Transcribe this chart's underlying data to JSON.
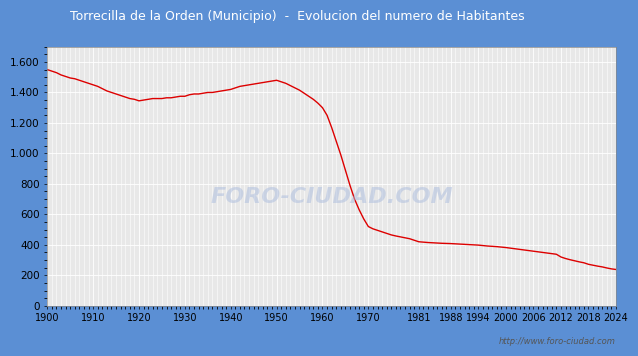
{
  "title": "Torrecilla de la Orden (Municipio)  -  Evolucion del numero de Habitantes",
  "title_bg_color": "#5b8fd4",
  "title_text_color": "white",
  "line_color": "#dd0000",
  "plot_bg_color": "#e8e8e8",
  "grid_color": "#ffffff",
  "ylim": [
    0,
    1700
  ],
  "yticks": [
    0,
    200,
    400,
    600,
    800,
    1000,
    1200,
    1400,
    1600
  ],
  "xtick_labels": [
    "1900",
    "1910",
    "1920",
    "1930",
    "1940",
    "1950",
    "1960",
    "1970",
    "1981",
    "1988",
    "1994",
    "2000",
    "2006",
    "2012",
    "2018",
    "2024"
  ],
  "watermark": "http://www.foro-ciudad.com",
  "fig_bg_color": "#d0d8e8",
  "data": {
    "years": [
      1900,
      1901,
      1902,
      1903,
      1904,
      1905,
      1906,
      1907,
      1908,
      1909,
      1910,
      1911,
      1912,
      1913,
      1914,
      1915,
      1916,
      1917,
      1918,
      1919,
      1920,
      1921,
      1922,
      1923,
      1924,
      1925,
      1926,
      1927,
      1928,
      1929,
      1930,
      1931,
      1932,
      1933,
      1934,
      1935,
      1936,
      1937,
      1938,
      1939,
      1940,
      1941,
      1942,
      1943,
      1944,
      1945,
      1946,
      1947,
      1948,
      1949,
      1950,
      1951,
      1952,
      1953,
      1954,
      1955,
      1956,
      1957,
      1958,
      1959,
      1960,
      1961,
      1962,
      1963,
      1964,
      1965,
      1966,
      1967,
      1968,
      1969,
      1970,
      1971,
      1972,
      1973,
      1974,
      1975,
      1976,
      1977,
      1978,
      1979,
      1981,
      1983,
      1986,
      1988,
      1991,
      1994,
      1996,
      1998,
      2000,
      2001,
      2002,
      2003,
      2004,
      2005,
      2006,
      2007,
      2008,
      2009,
      2010,
      2011,
      2012,
      2013,
      2014,
      2015,
      2016,
      2017,
      2018,
      2019,
      2020,
      2021,
      2022,
      2023,
      2024
    ],
    "population": [
      1550,
      1540,
      1530,
      1515,
      1505,
      1495,
      1490,
      1480,
      1470,
      1460,
      1450,
      1440,
      1425,
      1410,
      1400,
      1390,
      1380,
      1370,
      1360,
      1355,
      1345,
      1350,
      1355,
      1360,
      1360,
      1360,
      1365,
      1365,
      1370,
      1375,
      1375,
      1385,
      1390,
      1390,
      1395,
      1400,
      1400,
      1405,
      1410,
      1415,
      1420,
      1430,
      1440,
      1445,
      1450,
      1455,
      1460,
      1465,
      1470,
      1475,
      1480,
      1470,
      1460,
      1445,
      1430,
      1415,
      1395,
      1375,
      1355,
      1330,
      1300,
      1250,
      1170,
      1080,
      990,
      890,
      790,
      700,
      630,
      570,
      520,
      505,
      495,
      485,
      475,
      465,
      458,
      452,
      446,
      440,
      420,
      415,
      410,
      408,
      403,
      398,
      392,
      388,
      382,
      378,
      374,
      370,
      366,
      362,
      358,
      354,
      350,
      346,
      342,
      338,
      320,
      310,
      302,
      295,
      288,
      282,
      272,
      266,
      260,
      255,
      248,
      242,
      238
    ]
  }
}
